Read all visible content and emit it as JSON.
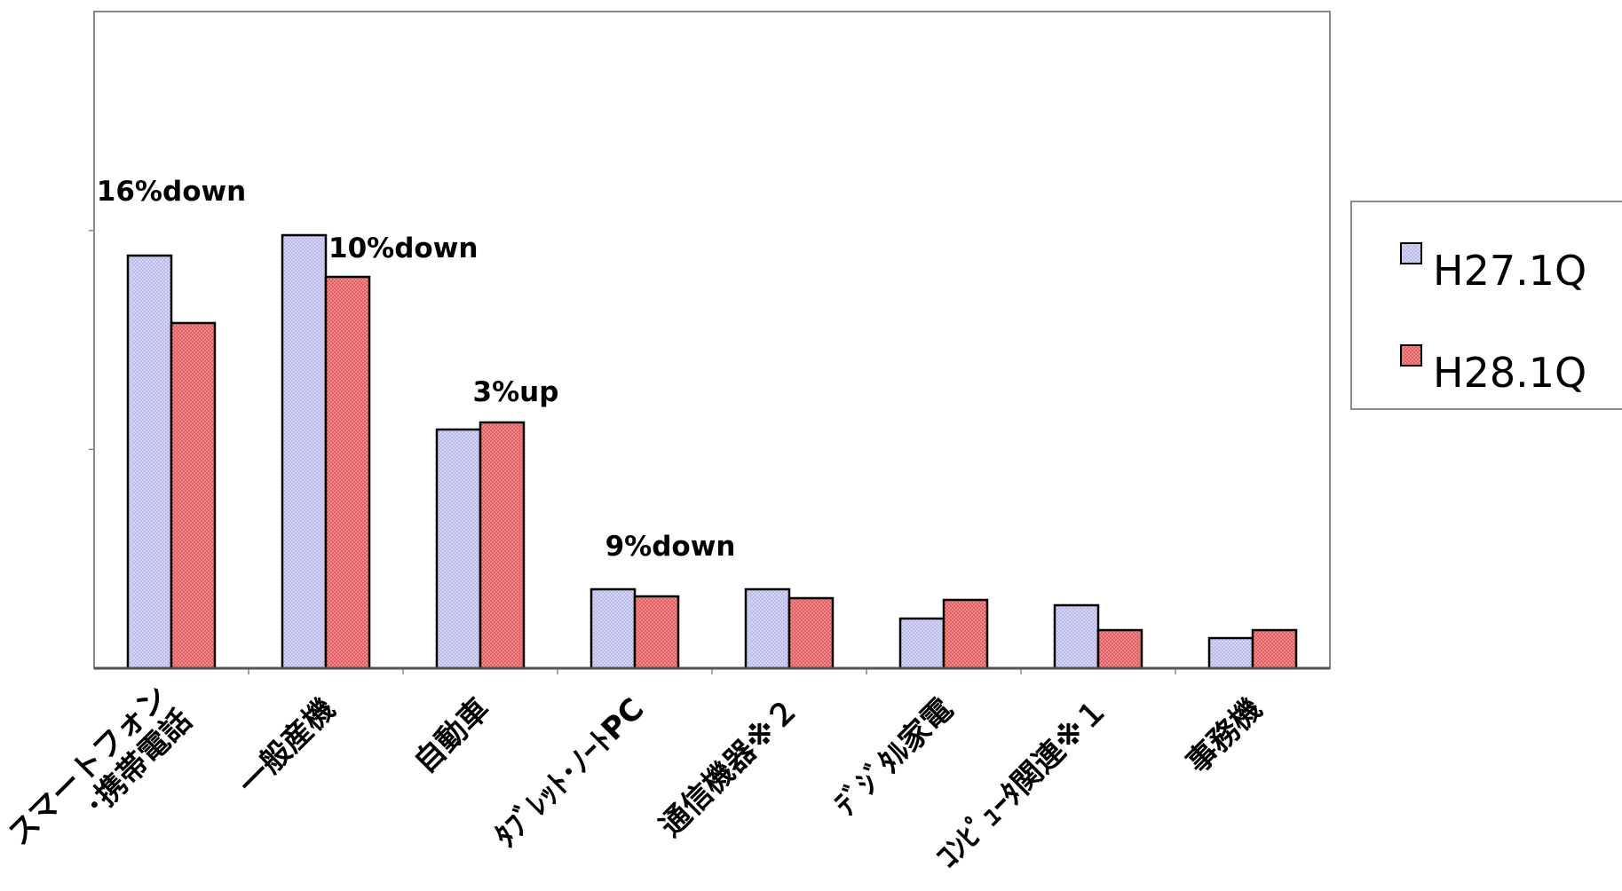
{
  "chart_data": {
    "type": "bar",
    "categories": [
      [
        "スマートフォン",
        "･携帯電話"
      ],
      [
        "一般産機"
      ],
      [
        "自動車"
      ],
      [
        "ﾀﾌﾞﾚｯﾄ･ﾉｰﾄPC"
      ],
      [
        "通信機器※２"
      ],
      [
        "ﾃﾞｼﾞﾀﾙ家電"
      ],
      [
        "ｺﾝﾋﾟｭｰﾀ関連※１"
      ],
      [
        "事務機"
      ]
    ],
    "series": [
      {
        "name": "H27.1Q",
        "color": "#ccccf5",
        "values": [
          465,
          488,
          269,
          89,
          89,
          56,
          71,
          34
        ]
      },
      {
        "name": "H28.1Q",
        "color": "#f07878",
        "values": [
          389,
          441,
          277,
          81,
          79,
          77,
          43,
          43
        ]
      }
    ],
    "annotations": [
      {
        "text": "16%down",
        "category": 0
      },
      {
        "text": "10%down",
        "category": 1
      },
      {
        "text": "3%up",
        "category": 2
      },
      {
        "text": "9%down",
        "category": 3
      }
    ],
    "ylim": [
      0,
      740
    ],
    "legend_position": "right",
    "grid": false,
    "title": "",
    "xlabel": "",
    "ylabel": ""
  }
}
